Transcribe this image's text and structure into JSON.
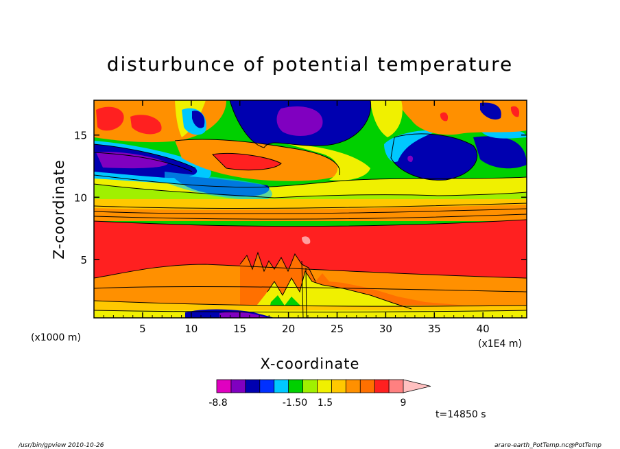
{
  "chart_data": {
    "type": "heatmap",
    "title": "disturbunce of potential temperature",
    "xlabel": "X-coordinate",
    "ylabel": "Z-coordinate",
    "x_unit": "(x1000 m)",
    "x_unit_right": "(x1E4 m)",
    "xlim": [
      0,
      44.5
    ],
    "ylim": [
      0.3,
      17.8
    ],
    "x_ticks": [
      "5",
      "10",
      "15",
      "20",
      "25",
      "30",
      "35",
      "40"
    ],
    "x_tick_values": [
      5,
      10,
      15,
      20,
      25,
      30,
      35,
      40
    ],
    "y_ticks": [
      "5",
      "10",
      "15"
    ],
    "y_tick_values": [
      5,
      10,
      15
    ],
    "colorbar": {
      "labels": [
        "-8.8",
        "-1.50",
        "1.5",
        "9"
      ],
      "label_values": [
        -8.8,
        -1.5,
        1.5,
        9
      ],
      "colors": [
        "#e000c0",
        "#8000c0",
        "#0000b0",
        "#0030ff",
        "#00c8ff",
        "#00d000",
        "#a0f000",
        "#f0f000",
        "#ffc800",
        "#ff9000",
        "#ff7000",
        "#ff2020",
        "#ff8080",
        "#ffc0c0"
      ],
      "bounds": [
        -8.8,
        -6.0,
        -3.5,
        -1.5,
        -1.0,
        -0.6,
        -0.2,
        0.2,
        0.6,
        1.0,
        1.5,
        4.0,
        6.5,
        9.0,
        9.0
      ]
    },
    "regions": [
      {
        "z": [
          0.3,
          1.0
        ],
        "value": 0.5
      },
      {
        "z": [
          1.0,
          3.5
        ],
        "value": 2.5
      },
      {
        "z": [
          3.5,
          8.0
        ],
        "value": 5.5
      },
      {
        "z": [
          8.0,
          10.0
        ],
        "value": 2.0
      },
      {
        "z": [
          10.0,
          17.8
        ],
        "value": 0.0
      }
    ]
  },
  "footer": {
    "left": "/usr/bin/gpview   2010-10-26",
    "right": "arare-earth_PotTemp.nc@PotTemp"
  },
  "time_label": "t=14850 s",
  "colors": {
    "background": "#ffffff",
    "frame": "#000000"
  }
}
